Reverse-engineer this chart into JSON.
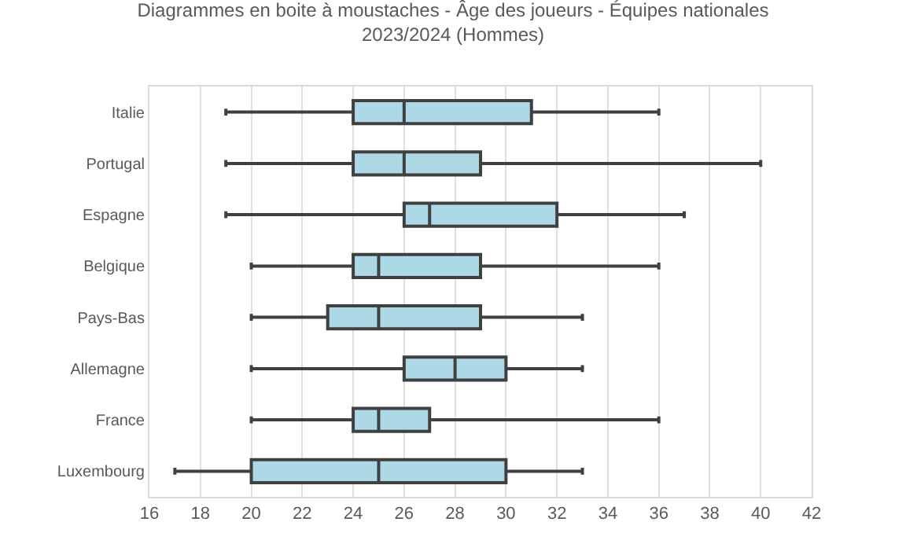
{
  "chart_data": {
    "type": "box",
    "title": "Diagrammes en boite à moustaches - Âge des joueurs - Équipes nationales\n2023/2024 (Hommes)",
    "orientation": "horizontal",
    "categories": [
      "Italie",
      "Portugal",
      "Espagne",
      "Belgique",
      "Pays-Bas",
      "Allemagne",
      "France",
      "Luxembourg"
    ],
    "boxes": [
      {
        "low": 19,
        "q1": 24,
        "median": 26,
        "q3": 31,
        "high": 36
      },
      {
        "low": 19,
        "q1": 24,
        "median": 26,
        "q3": 29,
        "high": 40
      },
      {
        "low": 19,
        "q1": 26,
        "median": 27,
        "q3": 32,
        "high": 37
      },
      {
        "low": 20,
        "q1": 24,
        "median": 25,
        "q3": 29,
        "high": 36
      },
      {
        "low": 20,
        "q1": 23,
        "median": 25,
        "q3": 29,
        "high": 33
      },
      {
        "low": 20,
        "q1": 26,
        "median": 28,
        "q3": 30,
        "high": 33
      },
      {
        "low": 20,
        "q1": 24,
        "median": 25,
        "q3": 27,
        "high": 36
      },
      {
        "low": 17,
        "q1": 20,
        "median": 25,
        "q3": 30,
        "high": 33
      }
    ],
    "color": "#add8e6",
    "xlim": [
      16,
      42
    ],
    "xticks": [
      16,
      18,
      20,
      22,
      24,
      26,
      28,
      30,
      32,
      34,
      36,
      38,
      40,
      42
    ],
    "grid": "x",
    "legend": false
  }
}
